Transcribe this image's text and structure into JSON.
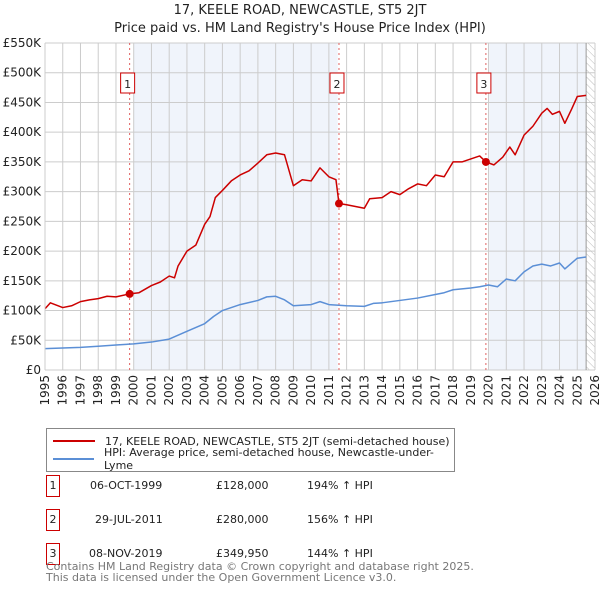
{
  "chart_data": {
    "type": "line",
    "title": "17, KEELE ROAD, NEWCASTLE, ST5 2JT",
    "subtitle": "Price paid vs. HM Land Registry's House Price Index (HPI)",
    "xlim": [
      1995,
      2026
    ],
    "ylim": [
      0,
      550000
    ],
    "x_ticks": [
      "1995",
      "1996",
      "1997",
      "1998",
      "1999",
      "2000",
      "2001",
      "2002",
      "2003",
      "2004",
      "2005",
      "2006",
      "2007",
      "2008",
      "2009",
      "2010",
      "2011",
      "2012",
      "2013",
      "2014",
      "2015",
      "2016",
      "2017",
      "2018",
      "2019",
      "2020",
      "2021",
      "2022",
      "2023",
      "2024",
      "2025",
      "2026"
    ],
    "y_ticks": [
      "£0",
      "£50K",
      "£100K",
      "£150K",
      "£200K",
      "£250K",
      "£300K",
      "£350K",
      "£400K",
      "£450K",
      "£500K",
      "£550K"
    ],
    "grid": true,
    "series": [
      {
        "name": "17, KEELE ROAD, NEWCASTLE, ST5 2JT (semi-detached house)",
        "color": "#cc0000",
        "x": [
          1995,
          1995.3,
          1996,
          1996.5,
          1997,
          1997.5,
          1998,
          1998.5,
          1999,
          1999.77,
          2000.3,
          2001,
          2001.5,
          2002,
          2002.3,
          2002.5,
          2003,
          2003.5,
          2004,
          2004.3,
          2004.6,
          2005,
          2005.5,
          2006,
          2006.5,
          2007,
          2007.5,
          2008,
          2008.5,
          2009,
          2009.5,
          2010,
          2010.5,
          2011,
          2011.4,
          2011.57,
          2012,
          2012.5,
          2013,
          2013.3,
          2014,
          2014.5,
          2015,
          2015.5,
          2016,
          2016.5,
          2017,
          2017.5,
          2018,
          2018.5,
          2019,
          2019.5,
          2019.85,
          2020.3,
          2020.8,
          2021.2,
          2021.5,
          2022,
          2022.5,
          2023,
          2023.3,
          2023.6,
          2024,
          2024.3,
          2024.7,
          2025,
          2025.5
        ],
        "y": [
          103,
          113,
          105,
          108,
          115,
          118,
          120,
          124,
          123,
          128,
          130,
          142,
          148,
          158,
          155,
          175,
          200,
          210,
          245,
          258,
          290,
          302,
          318,
          328,
          335,
          348,
          362,
          365,
          362,
          310,
          320,
          318,
          340,
          325,
          320,
          280,
          278,
          275,
          272,
          288,
          290,
          300,
          295,
          305,
          313,
          310,
          328,
          325,
          350,
          350,
          355,
          360,
          350,
          345,
          358,
          375,
          362,
          395,
          410,
          432,
          440,
          430,
          435,
          415,
          440,
          460,
          462
        ]
      },
      {
        "name": "HPI: Average price, semi-detached house, Newcastle-under-Lyme",
        "color": "#5b8fd6",
        "x": [
          1995,
          1996,
          1997,
          1998,
          1999,
          2000,
          2001,
          2002,
          2003,
          2004,
          2004.5,
          2005,
          2006,
          2007,
          2007.5,
          2008,
          2008.5,
          2009,
          2010,
          2010.5,
          2011,
          2012,
          2013,
          2013.5,
          2014,
          2015,
          2016,
          2017,
          2017.5,
          2018,
          2019,
          2019.5,
          2020,
          2020.5,
          2021,
          2021.5,
          2022,
          2022.5,
          2023,
          2023.5,
          2024,
          2024.3,
          2025,
          2025.5
        ],
        "y": [
          36,
          37,
          38,
          40,
          42,
          44,
          47,
          52,
          65,
          78,
          90,
          100,
          110,
          117,
          123,
          124,
          118,
          108,
          110,
          115,
          110,
          108,
          107,
          112,
          113,
          117,
          121,
          127,
          130,
          135,
          138,
          140,
          143,
          140,
          153,
          150,
          165,
          175,
          178,
          175,
          180,
          170,
          188,
          190
        ]
      }
    ],
    "y_units": "thousands GBP",
    "sales": [
      {
        "label": "1",
        "x": 1999.77,
        "y": 128
      },
      {
        "label": "2",
        "x": 2011.57,
        "y": 280
      },
      {
        "label": "3",
        "x": 2019.85,
        "y": 349.95
      }
    ],
    "legend_position": "below"
  },
  "table": [
    {
      "num": "1",
      "date": "06-OCT-1999",
      "price": "£128,000",
      "hpi": "194% ↑ HPI"
    },
    {
      "num": "2",
      "date": "29-JUL-2011",
      "price": "£280,000",
      "hpi": "156% ↑ HPI"
    },
    {
      "num": "3",
      "date": "08-NOV-2019",
      "price": "£349,950",
      "hpi": "144% ↑ HPI"
    }
  ],
  "footer": {
    "line1": "Contains HM Land Registry data © Crown copyright and database right 2025.",
    "line2": "This data is licensed under the Open Government Licence v3.0."
  }
}
